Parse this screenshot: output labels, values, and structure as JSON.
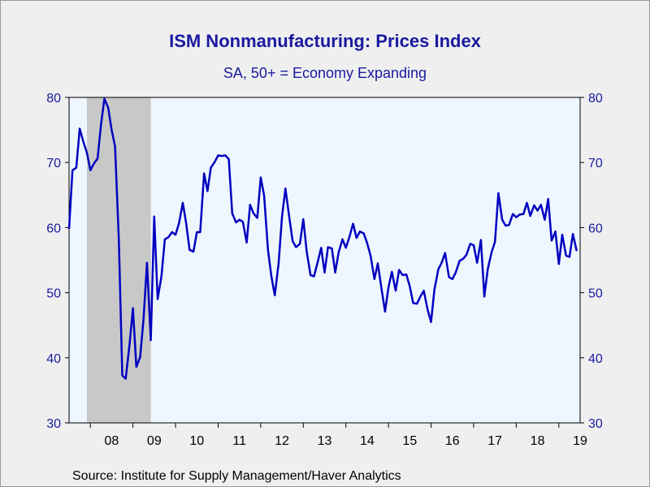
{
  "chart_data": {
    "type": "line",
    "title": "ISM Nonmanufacturing: Prices Index",
    "subtitle": "SA, 50+ = Economy Expanding",
    "source": "Source:  Institute for Supply Management/Haver Analytics",
    "ylim": [
      30,
      80
    ],
    "yticks": [
      "30",
      "40",
      "50",
      "60",
      "70",
      "80"
    ],
    "xticks": [
      "08",
      "09",
      "10",
      "11",
      "12",
      "13",
      "14",
      "15",
      "16",
      "17",
      "18",
      "19"
    ],
    "xlim": [
      2007.5,
      2019.5
    ],
    "recession": {
      "start": 2007.92,
      "end": 2009.42,
      "color": "#c8c8c8"
    },
    "plot_background": "#eef6ff",
    "line_color": "#0000c0",
    "series": [
      {
        "points": [
          [
            2007.5,
            59.8
          ],
          [
            2007.58,
            68.8
          ],
          [
            2007.67,
            69.2
          ],
          [
            2007.75,
            75.2
          ],
          [
            2007.83,
            73.3
          ],
          [
            2007.92,
            71.5
          ],
          [
            2008.0,
            68.8
          ],
          [
            2008.08,
            69.8
          ],
          [
            2008.17,
            70.6
          ],
          [
            2008.25,
            75.8
          ],
          [
            2008.33,
            79.8
          ],
          [
            2008.42,
            78.4
          ],
          [
            2008.5,
            75.0
          ],
          [
            2008.58,
            72.5
          ],
          [
            2008.67,
            58.0
          ],
          [
            2008.75,
            37.3
          ],
          [
            2008.83,
            36.8
          ],
          [
            2008.92,
            42.0
          ],
          [
            2009.0,
            47.6
          ],
          [
            2009.08,
            38.6
          ],
          [
            2009.17,
            40.1
          ],
          [
            2009.25,
            46.0
          ],
          [
            2009.33,
            54.6
          ],
          [
            2009.42,
            42.7
          ],
          [
            2009.5,
            61.7
          ],
          [
            2009.58,
            49.0
          ],
          [
            2009.67,
            52.5
          ],
          [
            2009.75,
            58.2
          ],
          [
            2009.83,
            58.5
          ],
          [
            2009.92,
            59.3
          ],
          [
            2010.0,
            58.9
          ],
          [
            2010.08,
            60.6
          ],
          [
            2010.17,
            63.8
          ],
          [
            2010.25,
            60.7
          ],
          [
            2010.33,
            56.6
          ],
          [
            2010.42,
            56.3
          ],
          [
            2010.5,
            59.3
          ],
          [
            2010.58,
            59.3
          ],
          [
            2010.67,
            68.3
          ],
          [
            2010.75,
            65.6
          ],
          [
            2010.83,
            69.2
          ],
          [
            2010.92,
            70.1
          ],
          [
            2011.0,
            71.1
          ],
          [
            2011.08,
            71.0
          ],
          [
            2011.17,
            71.1
          ],
          [
            2011.25,
            70.5
          ],
          [
            2011.33,
            62.2
          ],
          [
            2011.42,
            60.8
          ],
          [
            2011.5,
            61.2
          ],
          [
            2011.58,
            60.9
          ],
          [
            2011.67,
            57.7
          ],
          [
            2011.75,
            63.5
          ],
          [
            2011.83,
            62.2
          ],
          [
            2011.92,
            61.5
          ],
          [
            2012.0,
            67.7
          ],
          [
            2012.08,
            64.9
          ],
          [
            2012.17,
            56.6
          ],
          [
            2012.25,
            52.5
          ],
          [
            2012.33,
            49.6
          ],
          [
            2012.42,
            54.5
          ],
          [
            2012.5,
            61.7
          ],
          [
            2012.58,
            66.0
          ],
          [
            2012.67,
            61.6
          ],
          [
            2012.75,
            57.9
          ],
          [
            2012.83,
            57.0
          ],
          [
            2012.92,
            57.5
          ],
          [
            2013.0,
            61.3
          ],
          [
            2013.08,
            56.3
          ],
          [
            2013.17,
            52.7
          ],
          [
            2013.25,
            52.5
          ],
          [
            2013.33,
            54.5
          ],
          [
            2013.42,
            56.9
          ],
          [
            2013.5,
            53.1
          ],
          [
            2013.58,
            57.0
          ],
          [
            2013.67,
            56.8
          ],
          [
            2013.75,
            53.1
          ],
          [
            2013.83,
            56.2
          ],
          [
            2013.92,
            58.2
          ],
          [
            2014.0,
            56.9
          ],
          [
            2014.08,
            58.5
          ],
          [
            2014.17,
            60.6
          ],
          [
            2014.25,
            58.4
          ],
          [
            2014.33,
            59.4
          ],
          [
            2014.42,
            59.1
          ],
          [
            2014.5,
            57.6
          ],
          [
            2014.58,
            55.7
          ],
          [
            2014.67,
            52.1
          ],
          [
            2014.75,
            54.5
          ],
          [
            2014.83,
            50.9
          ],
          [
            2014.92,
            47.1
          ],
          [
            2015.0,
            50.8
          ],
          [
            2015.08,
            53.2
          ],
          [
            2015.17,
            50.3
          ],
          [
            2015.25,
            53.5
          ],
          [
            2015.33,
            52.7
          ],
          [
            2015.42,
            52.8
          ],
          [
            2015.5,
            51.0
          ],
          [
            2015.58,
            48.4
          ],
          [
            2015.67,
            48.3
          ],
          [
            2015.75,
            49.4
          ],
          [
            2015.83,
            50.3
          ],
          [
            2015.92,
            47.4
          ],
          [
            2016.0,
            45.5
          ],
          [
            2016.08,
            50.5
          ],
          [
            2016.17,
            53.6
          ],
          [
            2016.25,
            54.6
          ],
          [
            2016.33,
            56.1
          ],
          [
            2016.42,
            52.4
          ],
          [
            2016.5,
            52.1
          ],
          [
            2016.58,
            53.1
          ],
          [
            2016.67,
            54.9
          ],
          [
            2016.75,
            55.2
          ],
          [
            2016.83,
            55.8
          ],
          [
            2016.92,
            57.5
          ],
          [
            2017.0,
            57.3
          ],
          [
            2017.08,
            54.6
          ],
          [
            2017.17,
            58.1
          ],
          [
            2017.25,
            49.4
          ],
          [
            2017.33,
            53.6
          ],
          [
            2017.42,
            56.2
          ],
          [
            2017.5,
            57.8
          ],
          [
            2017.58,
            65.3
          ],
          [
            2017.67,
            61.2
          ],
          [
            2017.75,
            60.3
          ],
          [
            2017.83,
            60.4
          ],
          [
            2017.92,
            62.1
          ],
          [
            2018.0,
            61.6
          ],
          [
            2018.08,
            62.0
          ],
          [
            2018.17,
            62.1
          ],
          [
            2018.25,
            63.8
          ],
          [
            2018.33,
            61.8
          ],
          [
            2018.42,
            63.4
          ],
          [
            2018.5,
            62.6
          ],
          [
            2018.58,
            63.5
          ],
          [
            2018.67,
            61.2
          ],
          [
            2018.75,
            64.4
          ],
          [
            2018.83,
            58.0
          ],
          [
            2018.92,
            59.4
          ],
          [
            2019.0,
            54.4
          ],
          [
            2019.08,
            58.9
          ],
          [
            2019.17,
            55.7
          ],
          [
            2019.25,
            55.5
          ],
          [
            2019.33,
            59.0
          ],
          [
            2019.42,
            56.4
          ]
        ]
      }
    ]
  }
}
